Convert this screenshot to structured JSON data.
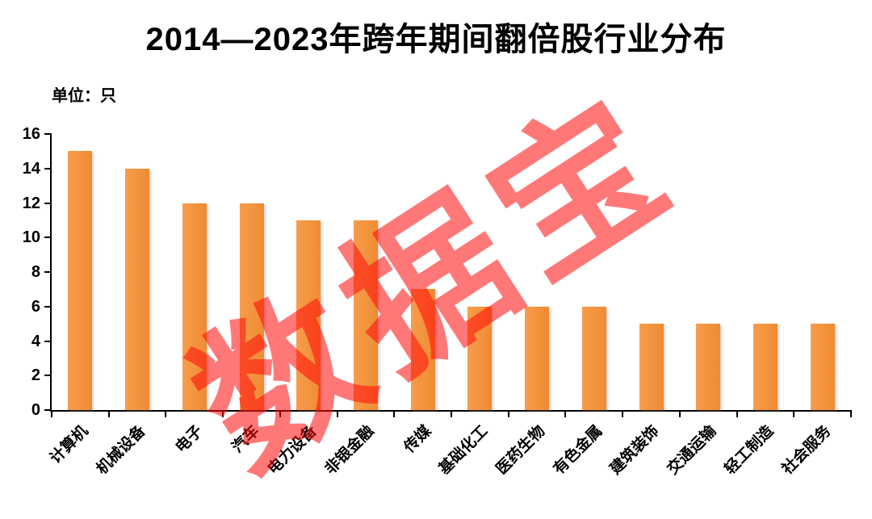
{
  "title": "2014—2023年跨年期间翻倍股行业分布",
  "unit_label": "单位：只",
  "watermark": "数据宝",
  "colors": {
    "bar": "#F0913C",
    "bar_shadow": "#B5B5B5",
    "watermark_red": "#FF0A0A",
    "axis": "#000000",
    "background": "#FFFFFF"
  },
  "chart_data": {
    "type": "bar",
    "title": "2014—2023年跨年期间翻倍股行业分布",
    "categories": [
      "计算机",
      "机械设备",
      "电子",
      "汽车",
      "电力设备",
      "非银金融",
      "传媒",
      "基础化工",
      "医药生物",
      "有色金属",
      "建筑装饰",
      "交通运输",
      "轻工制造",
      "社会服务"
    ],
    "values": [
      15,
      14,
      12,
      12,
      11,
      11,
      7,
      6,
      6,
      6,
      5,
      5,
      5,
      5
    ],
    "xlabel": "",
    "ylabel": "单位：只",
    "ylim": [
      0,
      16
    ],
    "yticks": [
      0,
      2,
      4,
      6,
      8,
      10,
      12,
      14,
      16
    ],
    "grid": false,
    "legend": false,
    "bar_color_hex": "#F0913C"
  }
}
